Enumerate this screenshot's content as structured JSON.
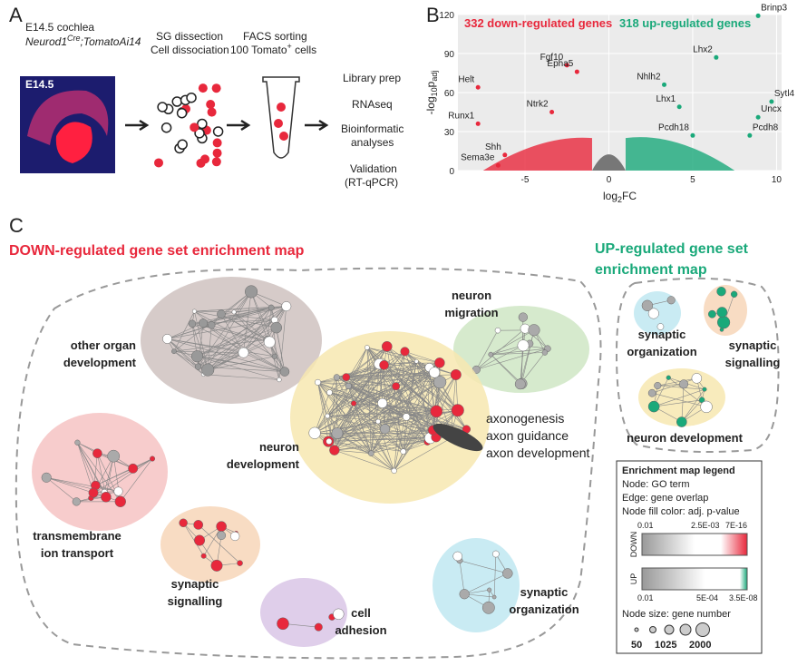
{
  "panel_a": {
    "label": "A",
    "sample": "E14.5 cochlea",
    "genotype": [
      "Neurod1",
      "Cre",
      ";TomatoAi14"
    ],
    "image_label": "E14.5",
    "step1": [
      "SG dissection",
      "Cell dissociation"
    ],
    "step2": [
      "FACS sorting",
      "100 Tomato",
      "+",
      " cells"
    ],
    "step3": [
      "Library prep",
      "RNAseq",
      "Bioinformatic",
      "analyses",
      "Validation",
      "(RT-qPCR)"
    ]
  },
  "chart_data": {
    "type": "scatter",
    "label": "B",
    "down_title": "332 down-regulated genes",
    "up_title": "318 up-regulated genes",
    "x_label": [
      "log",
      "2",
      "FC"
    ],
    "y_label": [
      "-log",
      "10",
      "p",
      "adj"
    ],
    "xlim": [
      -9,
      10.3
    ],
    "ylim": [
      0,
      120
    ],
    "xticks": [
      -5,
      0,
      5,
      10
    ],
    "yticks": [
      0,
      30,
      60,
      90,
      120
    ],
    "series": [
      {
        "name": "down",
        "color": "#e8283c",
        "labels": [
          "Helt",
          "Fgf10",
          "Epha5",
          "Ntrk2",
          "Runx1",
          "Shh",
          "Sema3e"
        ],
        "x": [
          -7.8,
          -2.5,
          -1.9,
          -3.4,
          -7.8,
          -6.2,
          -6.6
        ],
        "values": [
          64,
          81,
          76,
          45,
          36,
          12,
          4
        ]
      },
      {
        "name": "up",
        "color": "#1aa97a",
        "labels": [
          "Brinp3",
          "Lhx2",
          "Nhlh2",
          "Lhx1",
          "Pcdh18",
          "Sytl4",
          "Uncx",
          "Pcdh8"
        ],
        "x": [
          8.9,
          6.4,
          3.3,
          4.2,
          5.0,
          9.7,
          8.9,
          8.4
        ],
        "values": [
          119,
          87,
          66,
          49,
          27,
          53,
          41,
          27
        ]
      }
    ]
  },
  "panel_c": {
    "label": "C",
    "down_title": "DOWN-regulated gene set enrichment map",
    "up_title": [
      "UP-regulated gene set",
      "enrichment map"
    ],
    "down_clusters": [
      [
        "other organ",
        "development"
      ],
      [
        "neuron",
        "migration"
      ],
      [
        "neuron",
        "development"
      ],
      [
        "axonogenesis",
        "axon guidance",
        "axon development"
      ],
      [
        "transmembrane",
        "ion transport"
      ],
      [
        "synaptic",
        "signalling"
      ],
      [
        "cell",
        "adhesion"
      ],
      [
        "synaptic",
        "organization"
      ]
    ],
    "up_clusters": [
      [
        "synaptic",
        "organization"
      ],
      [
        "synaptic",
        "signalling"
      ],
      [
        "neuron development"
      ]
    ],
    "legend": {
      "title": "Enrichment map legend",
      "lines": [
        "Node: GO term",
        "Edge: gene overlap",
        "Node fill color: adj. p-value"
      ],
      "down_ticks": [
        "0.01",
        "2.5E-03",
        "7E-16"
      ],
      "down": "DOWN",
      "up": "UP",
      "up_ticks": [
        "0.01",
        "5E-04",
        "3.5E-08"
      ],
      "size_title": "Node size: gene number",
      "sizes": [
        "50",
        "1025",
        "2000"
      ]
    }
  }
}
